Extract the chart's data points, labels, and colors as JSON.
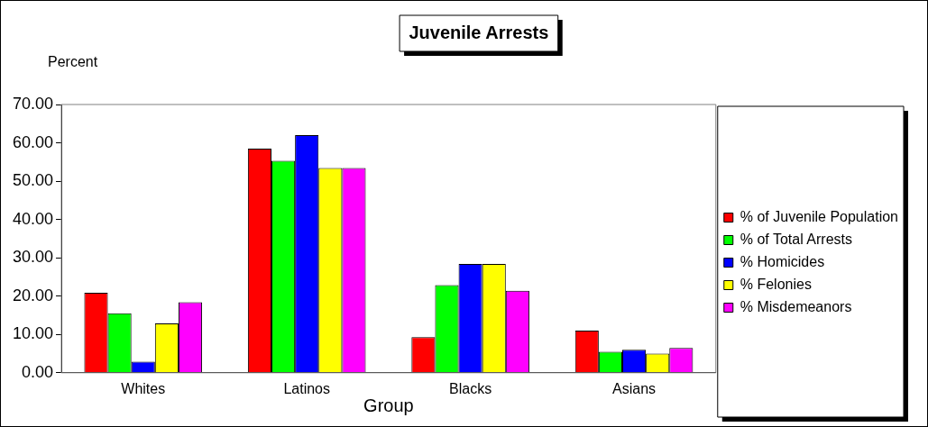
{
  "chart_data": {
    "type": "bar",
    "title": "Juvenile Arrests",
    "ylabel": "Percent",
    "xlabel": "Group",
    "categories": [
      "Whites",
      "Latinos",
      "Blacks",
      "Asians"
    ],
    "series": [
      {
        "name": "% of Juvenile Population",
        "color": "#ff0000",
        "values": [
          20.9,
          58.5,
          9.3,
          11.0
        ]
      },
      {
        "name": "% of Total Arrests",
        "color": "#00ff00",
        "values": [
          15.5,
          55.3,
          22.9,
          5.5
        ]
      },
      {
        "name": "% Homicides",
        "color": "#0000ff",
        "values": [
          2.9,
          62.0,
          28.4,
          6.0
        ]
      },
      {
        "name": "% Felonies",
        "color": "#ffff00",
        "values": [
          12.9,
          53.4,
          28.4,
          5.0
        ]
      },
      {
        "name": "% Misdemeanors",
        "color": "#ff00ff",
        "values": [
          18.4,
          53.4,
          21.4,
          6.5
        ]
      }
    ],
    "ylim": [
      0,
      70
    ],
    "yticks": [
      {
        "value": 0,
        "label": "0.00"
      },
      {
        "value": 10,
        "label": "10.00"
      },
      {
        "value": 20,
        "label": "20.00"
      },
      {
        "value": 30,
        "label": "30.00"
      },
      {
        "value": 40,
        "label": "40.00"
      },
      {
        "value": 50,
        "label": "50.00"
      },
      {
        "value": 60,
        "label": "60.00"
      },
      {
        "value": 70,
        "label": "70.00"
      }
    ],
    "grid": false,
    "legend": "right"
  }
}
